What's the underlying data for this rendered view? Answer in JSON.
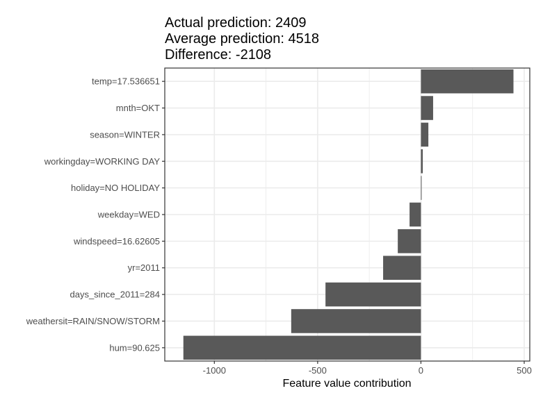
{
  "chart_data": {
    "type": "bar",
    "orientation": "horizontal",
    "title_lines": [
      "Actual prediction: 2409",
      "Average prediction: 4518",
      "Difference: -2108"
    ],
    "xlabel": "Feature value contribution",
    "ylabel": "",
    "xlim": [
      -1150,
      500
    ],
    "xticks": [
      -1000,
      -500,
      0,
      500
    ],
    "xtick_labels": [
      "-1000",
      "-500",
      "0",
      "500"
    ],
    "grid": true,
    "categories": [
      "temp=17.536651",
      "mnth=OKT",
      "season=WINTER",
      "workingday=WORKING DAY",
      "holiday=NO HOLIDAY",
      "weekday=WED",
      "windspeed=16.62605",
      "yr=2011",
      "days_since_2011=284",
      "weathersit=RAIN/SNOW/STORM",
      "hum=90.625"
    ],
    "values": [
      448,
      59,
      36,
      9,
      3,
      -55,
      -112,
      -183,
      -462,
      -628,
      -1150
    ],
    "bar_color": "#595959",
    "panel_background": "#ffffff",
    "grid_color": "#ebebeb"
  }
}
